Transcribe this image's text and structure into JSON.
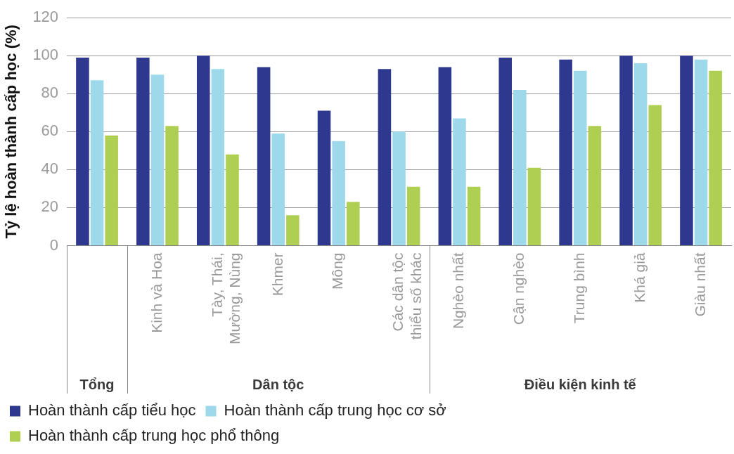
{
  "chart_data": {
    "type": "bar",
    "ylabel": "Tỷ lệ hoàn thành cấp học (%)",
    "categories": [
      null,
      "Kinh và Hoa",
      "Tày, Thái, Mường, Nùng",
      "Khmer",
      "Mông",
      "Các dân tộc thiểu số khác",
      "Nghèo nhất",
      "Cận nghèo",
      "Trung bình",
      "Khá giả",
      "Giàu nhất"
    ],
    "series": [
      {
        "name": "Hoàn thành cấp tiểu học",
        "color": "#2e388f",
        "values": [
          99,
          99,
          100,
          94,
          71,
          93,
          94,
          99,
          98,
          100,
          100
        ]
      },
      {
        "name": "Hoàn thành cấp trung học cơ sở",
        "color": "#9dd9eb",
        "values": [
          87,
          90,
          93,
          59,
          55,
          60,
          67,
          82,
          92,
          96,
          98
        ]
      },
      {
        "name": "Hoàn thành cấp trung học phổ thông",
        "color": "#afcf53",
        "values": [
          58,
          63,
          48,
          16,
          23,
          31,
          31,
          41,
          63,
          74,
          92
        ]
      }
    ],
    "ylim": [
      0,
      120
    ],
    "yticks": [
      0,
      20,
      40,
      60,
      80,
      100,
      120
    ],
    "grid": "y",
    "legend": "bottom",
    "annotations": [
      "Tổng",
      "Dân tộc",
      "Điều kiện kinh tế"
    ]
  }
}
